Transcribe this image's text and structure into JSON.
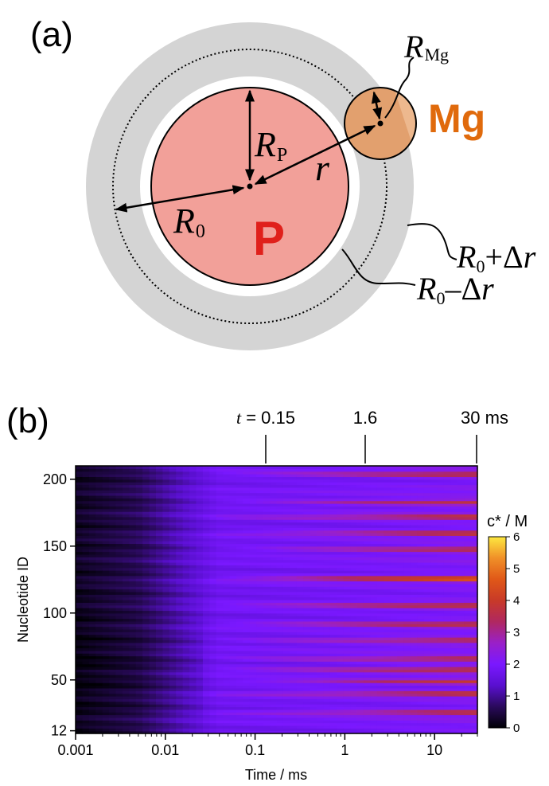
{
  "panel_a": {
    "label": "(a)",
    "symbols": {
      "r_mg": "R",
      "r_mg_sub": "Mg",
      "mg": "Mg",
      "r_p": "R",
      "r_p_sub": "P",
      "r": "r",
      "r0": "R",
      "r0_sub": "0",
      "p": "P",
      "r0_plus": "R",
      "r0_plus_sub": "0",
      "r0_plus_op": "+Δ",
      "r0_plus_r": "r",
      "r0_minus": "R",
      "r0_minus_sub": "0",
      "r0_minus_op": "–Δ",
      "r0_minus_r": "r"
    },
    "colors": {
      "shell": "#d4d4d4",
      "p_sphere": "#f2a099",
      "mg_sphere": "#e2a06e",
      "mg_text": "#e06a0c",
      "p_text": "#e0201b"
    }
  },
  "panel_b": {
    "label": "(b)",
    "top_markers": [
      {
        "t_ms": 0.15,
        "text_prefix": "t",
        "text": " = 0.15"
      },
      {
        "t_ms": 1.6,
        "text": "1.6"
      },
      {
        "t_ms": 30,
        "text": "30 ms"
      }
    ],
    "colorbar": {
      "title": "c* / M",
      "ticks": [
        "0",
        "1",
        "2",
        "3",
        "4",
        "5",
        "6"
      ],
      "colors": [
        "#000004",
        "#2a0a5c",
        "#5a10d0",
        "#7a18ff",
        "#9a20c8",
        "#b02860",
        "#c83a28",
        "#e05818",
        "#f09028",
        "#fde840"
      ]
    }
  },
  "chart_data": {
    "type": "heatmap",
    "title": "",
    "xlabel": "Time / ms",
    "ylabel": "Nucleotide ID",
    "x_scale": "log",
    "xlim": [
      0.001,
      30
    ],
    "ylim": [
      10,
      210
    ],
    "xticks": [
      "0.001",
      "0.01",
      "0.1",
      "1",
      "10"
    ],
    "yticks": [
      "12",
      "50",
      "100",
      "150",
      "200"
    ],
    "zlabel": "c* / M",
    "zlim": [
      0,
      6
    ],
    "high_concentration_bands_nucleotide": [
      26,
      40,
      49,
      58,
      66,
      80,
      92,
      106,
      126,
      148,
      160,
      172,
      183,
      204
    ],
    "brightest_band_nucleotide": 126
  }
}
